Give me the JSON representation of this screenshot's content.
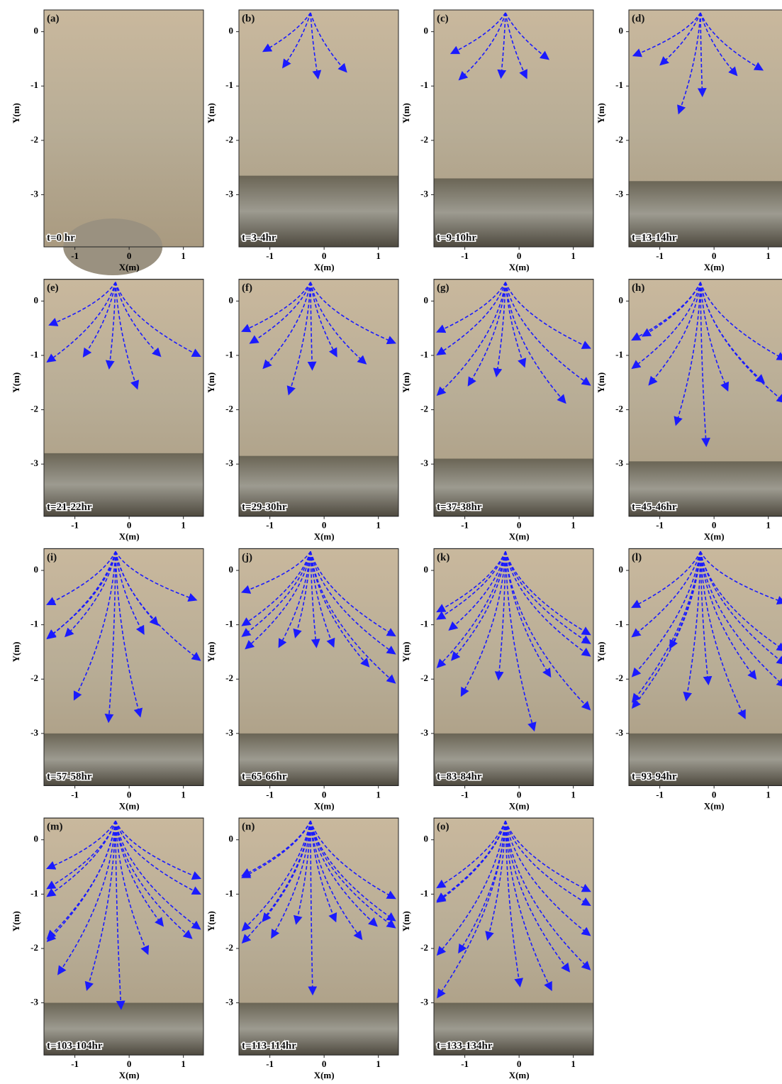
{
  "axes": {
    "xlabel": "X(m)",
    "ylabel": "Y(m)",
    "xlim": [
      -1.57,
      1.37
    ],
    "ylim": [
      -3.96,
      0.4
    ],
    "xticks": [
      -1,
      0,
      1
    ],
    "yticks": [
      0,
      -1,
      -2,
      -3
    ]
  },
  "panels": [
    {
      "label": "(a)",
      "time": "t=0 hr"
    },
    {
      "label": "(b)",
      "time": "t=3-4hr"
    },
    {
      "label": "(c)",
      "time": "t=9-10hr"
    },
    {
      "label": "(d)",
      "time": "t=13-14hr"
    },
    {
      "label": "(e)",
      "time": "t=21-22hr"
    },
    {
      "label": "(f)",
      "time": "t=29-30hr"
    },
    {
      "label": "(g)",
      "time": "t=37-38hr"
    },
    {
      "label": "(h)",
      "time": "t=45-46hr"
    },
    {
      "label": "(i)",
      "time": "t=57-58hr"
    },
    {
      "label": "(j)",
      "time": "t=65-66hr"
    },
    {
      "label": "(k)",
      "time": "t=83-84hr"
    },
    {
      "label": "(l)",
      "time": "t=93-94hr"
    },
    {
      "label": "(m)",
      "time": "t=103-104hr"
    },
    {
      "label": "(n)",
      "time": "t=113-114hr"
    },
    {
      "label": "(o)",
      "time": "t=133-134hr"
    }
  ]
}
